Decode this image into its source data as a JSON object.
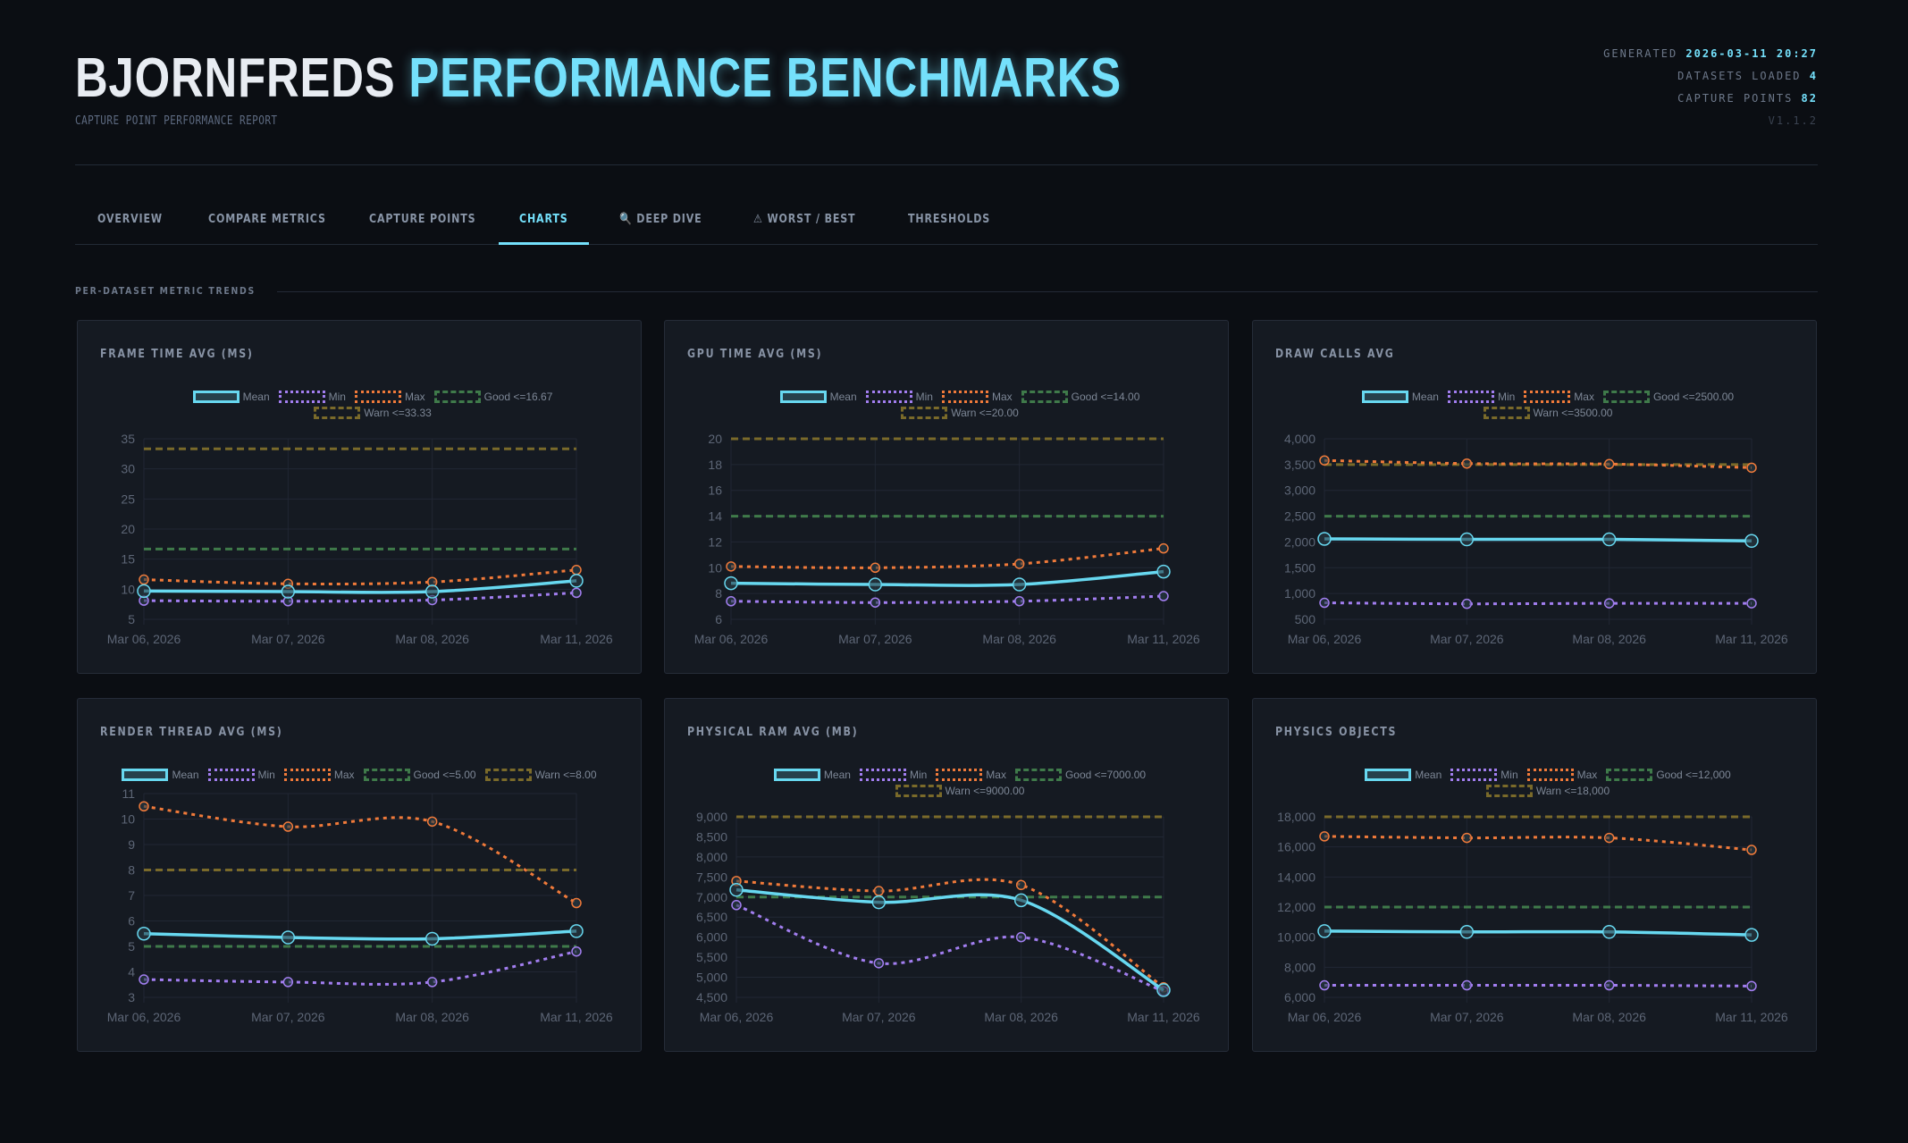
{
  "header": {
    "title_a": "BJORNFREDS",
    "title_b": "PERFORMANCE BENCHMARKS",
    "subtitle": "CAPTURE POINT PERFORMANCE REPORT",
    "generated_label": "GENERATED",
    "generated_value": "2026-03-11 20:27",
    "datasets_label": "DATASETS LOADED",
    "datasets_value": "4",
    "capture_label": "CAPTURE POINTS",
    "capture_value": "82",
    "version": "V1.1.2"
  },
  "tabs": [
    {
      "label": "OVERVIEW"
    },
    {
      "label": "COMPARE METRICS"
    },
    {
      "label": "CAPTURE POINTS"
    },
    {
      "label": "CHARTS",
      "active": true
    },
    {
      "label": "DEEP DIVE",
      "icon": "magnifier-icon"
    },
    {
      "label": "WORST / BEST",
      "icon": "warning-icon"
    },
    {
      "label": "THRESHOLDS"
    }
  ],
  "section_label": "PER-DATASET METRIC TRENDS",
  "colors": {
    "accent": "#74e0fb",
    "mean": "#67d8f0",
    "min": "#a27ef0",
    "max": "#f07a3a",
    "good": "#3f7a4a",
    "warn": "#7a6a2a"
  },
  "legend": {
    "mean": "Mean",
    "min": "Min",
    "max": "Max"
  },
  "chart_data": [
    {
      "type": "line",
      "title": "FRAME TIME AVG (MS)",
      "categories": [
        "Mar 06, 2026",
        "Mar 07, 2026",
        "Mar 08, 2026",
        "Mar 11, 2026"
      ],
      "ylim": [
        5,
        35
      ],
      "yticks": [
        5,
        10,
        15,
        20,
        25,
        30,
        35
      ],
      "series": [
        {
          "name": "Mean",
          "values": [
            9.7,
            9.6,
            9.6,
            11.4
          ]
        },
        {
          "name": "Min",
          "values": [
            8.1,
            8.0,
            8.2,
            9.4
          ]
        },
        {
          "name": "Max",
          "values": [
            11.6,
            10.9,
            11.2,
            13.2
          ]
        }
      ],
      "thresholds": [
        {
          "name": "Good <=16.67",
          "value": 16.67
        },
        {
          "name": "Warn <=33.33",
          "value": 33.33
        }
      ]
    },
    {
      "type": "line",
      "title": "GPU TIME AVG (MS)",
      "categories": [
        "Mar 06, 2026",
        "Mar 07, 2026",
        "Mar 08, 2026",
        "Mar 11, 2026"
      ],
      "ylim": [
        6,
        20
      ],
      "yticks": [
        6,
        8,
        10,
        12,
        14,
        16,
        18,
        20
      ],
      "series": [
        {
          "name": "Mean",
          "values": [
            8.8,
            8.7,
            8.7,
            9.7
          ]
        },
        {
          "name": "Min",
          "values": [
            7.4,
            7.3,
            7.4,
            7.8
          ]
        },
        {
          "name": "Max",
          "values": [
            10.1,
            10.0,
            10.3,
            11.5
          ]
        }
      ],
      "thresholds": [
        {
          "name": "Good <=14.00",
          "value": 14
        },
        {
          "name": "Warn <=20.00",
          "value": 20
        }
      ]
    },
    {
      "type": "line",
      "title": "DRAW CALLS AVG",
      "categories": [
        "Mar 06, 2026",
        "Mar 07, 2026",
        "Mar 08, 2026",
        "Mar 11, 2026"
      ],
      "ylim": [
        500,
        4000
      ],
      "yticks": [
        500,
        1000,
        1500,
        2000,
        2500,
        3000,
        3500,
        4000
      ],
      "series": [
        {
          "name": "Mean",
          "values": [
            2060,
            2050,
            2050,
            2020
          ]
        },
        {
          "name": "Min",
          "values": [
            820,
            800,
            810,
            810
          ]
        },
        {
          "name": "Max",
          "values": [
            3580,
            3520,
            3510,
            3440
          ]
        }
      ],
      "thresholds": [
        {
          "name": "Good <=2500.00",
          "value": 2500
        },
        {
          "name": "Warn <=3500.00",
          "value": 3500
        }
      ]
    },
    {
      "type": "line",
      "title": "RENDER THREAD AVG (MS)",
      "categories": [
        "Mar 06, 2026",
        "Mar 07, 2026",
        "Mar 08, 2026",
        "Mar 11, 2026"
      ],
      "ylim": [
        3,
        11
      ],
      "yticks": [
        3,
        4,
        5,
        6,
        7,
        8,
        9,
        10,
        11
      ],
      "series": [
        {
          "name": "Mean",
          "values": [
            5.5,
            5.35,
            5.3,
            5.6
          ]
        },
        {
          "name": "Min",
          "values": [
            3.7,
            3.6,
            3.6,
            4.8
          ]
        },
        {
          "name": "Max",
          "values": [
            10.5,
            9.7,
            9.9,
            6.7
          ]
        }
      ],
      "thresholds": [
        {
          "name": "Good <=5.00",
          "value": 5
        },
        {
          "name": "Warn <=8.00",
          "value": 8
        }
      ]
    },
    {
      "type": "line",
      "title": "PHYSICAL RAM AVG (MB)",
      "categories": [
        "Mar 06, 2026",
        "Mar 07, 2026",
        "Mar 08, 2026",
        "Mar 11, 2026"
      ],
      "ylim": [
        4500,
        9000
      ],
      "yticks": [
        4500,
        5000,
        5500,
        6000,
        6500,
        7000,
        7500,
        8000,
        8500,
        9000
      ],
      "series": [
        {
          "name": "Mean",
          "values": [
            7180,
            6870,
            6920,
            4680
          ]
        },
        {
          "name": "Min",
          "values": [
            6800,
            5350,
            6000,
            4650
          ]
        },
        {
          "name": "Max",
          "values": [
            7400,
            7150,
            7300,
            4750
          ]
        }
      ],
      "thresholds": [
        {
          "name": "Good <=7000.00",
          "value": 7000
        },
        {
          "name": "Warn <=9000.00",
          "value": 9000
        }
      ]
    },
    {
      "type": "line",
      "title": "PHYSICS OBJECTS",
      "categories": [
        "Mar 06, 2026",
        "Mar 07, 2026",
        "Mar 08, 2026",
        "Mar 11, 2026"
      ],
      "ylim": [
        6000,
        18000
      ],
      "yticks": [
        6000,
        8000,
        10000,
        12000,
        14000,
        16000,
        18000
      ],
      "series": [
        {
          "name": "Mean",
          "values": [
            10400,
            10350,
            10350,
            10150
          ]
        },
        {
          "name": "Min",
          "values": [
            6800,
            6800,
            6800,
            6750
          ]
        },
        {
          "name": "Max",
          "values": [
            16700,
            16600,
            16600,
            15800
          ]
        }
      ],
      "thresholds": [
        {
          "name": "Good <=12,000",
          "value": 12000
        },
        {
          "name": "Warn <=18,000",
          "value": 18000
        }
      ]
    }
  ]
}
